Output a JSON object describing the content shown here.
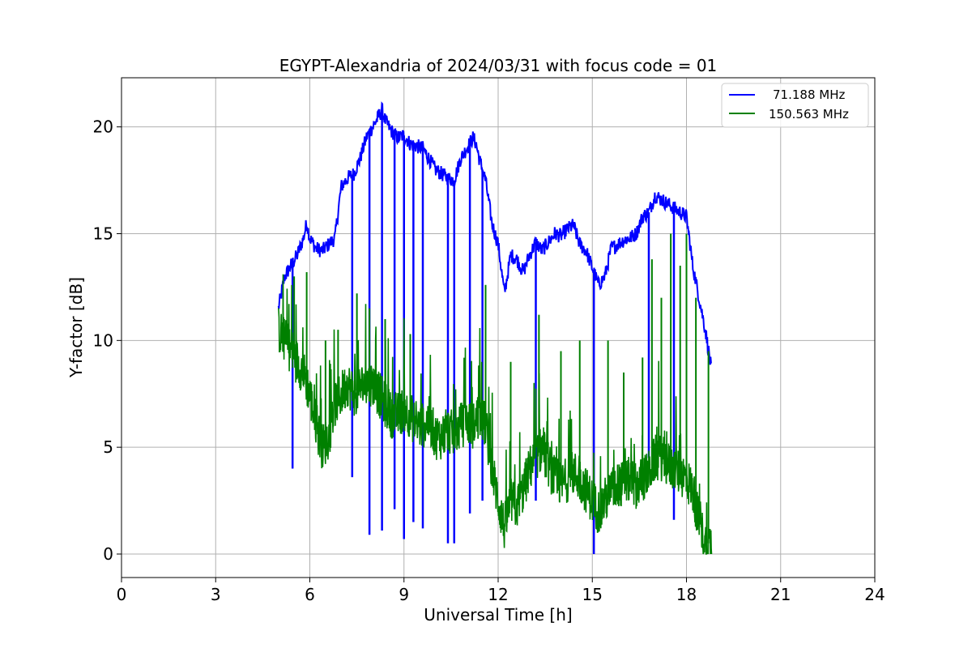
{
  "chart_data": {
    "type": "line",
    "title": "EGYPT-Alexandria of 2024/03/31 with focus code = 01",
    "xlabel": "Universal Time [h]",
    "ylabel": "Y-factor [dB]",
    "xlim": [
      0,
      24
    ],
    "ylim": [
      -1.1,
      22.3
    ],
    "xticks": [
      0,
      3,
      6,
      9,
      12,
      15,
      18,
      21,
      24
    ],
    "yticks": [
      0,
      5,
      10,
      15,
      20
    ],
    "grid": true,
    "legend_position": "top-right",
    "series": [
      {
        "name": "71.188 MHz",
        "color": "#0000ff",
        "x": [
          5.0,
          5.2,
          5.4,
          5.6,
          5.8,
          5.9,
          6.0,
          6.2,
          6.4,
          6.6,
          6.8,
          6.9,
          7.0,
          7.2,
          7.4,
          7.6,
          7.8,
          8.0,
          8.2,
          8.3,
          8.4,
          8.6,
          8.8,
          9.0,
          9.2,
          9.4,
          9.6,
          9.8,
          10.0,
          10.2,
          10.4,
          10.6,
          10.8,
          11.0,
          11.2,
          11.3,
          11.4,
          11.6,
          11.8,
          12.0,
          12.2,
          12.4,
          12.6,
          12.8,
          13.0,
          13.2,
          13.4,
          13.6,
          13.8,
          14.0,
          14.2,
          14.4,
          14.6,
          14.8,
          15.0,
          15.2,
          15.4,
          15.6,
          15.8,
          16.0,
          16.2,
          16.4,
          16.6,
          16.8,
          17.0,
          17.2,
          17.4,
          17.6,
          17.8,
          18.0,
          18.2,
          18.4,
          18.6,
          18.8
        ],
        "y": [
          11.5,
          13.0,
          13.5,
          14.0,
          14.8,
          15.5,
          14.8,
          14.3,
          14.2,
          14.5,
          14.8,
          16.0,
          17.2,
          17.6,
          17.8,
          18.5,
          19.5,
          20.0,
          20.5,
          20.8,
          20.3,
          19.8,
          19.5,
          19.6,
          19.2,
          19.1,
          19.0,
          18.5,
          18.0,
          17.8,
          17.6,
          17.5,
          18.5,
          19.0,
          19.5,
          19.2,
          18.5,
          17.5,
          15.5,
          14.5,
          12.2,
          14.0,
          13.8,
          13.2,
          14.0,
          14.6,
          14.2,
          14.6,
          15.0,
          14.9,
          15.2,
          15.4,
          14.5,
          14.2,
          13.4,
          12.6,
          13.0,
          14.3,
          14.5,
          14.7,
          14.8,
          15.0,
          15.8,
          16.0,
          16.8,
          16.6,
          16.4,
          16.2,
          16.0,
          15.8,
          13.5,
          12.0,
          10.5,
          8.6
        ],
        "dips": [
          [
            5.45,
            4.0
          ],
          [
            7.35,
            3.6
          ],
          [
            7.9,
            0.9
          ],
          [
            8.3,
            1.1
          ],
          [
            8.7,
            2.1
          ],
          [
            9.0,
            0.7
          ],
          [
            9.3,
            1.5
          ],
          [
            9.6,
            1.2
          ],
          [
            10.4,
            0.5
          ],
          [
            10.6,
            0.5
          ],
          [
            11.1,
            1.9
          ],
          [
            11.5,
            2.5
          ],
          [
            13.2,
            2.5
          ],
          [
            15.05,
            0.0
          ],
          [
            17.6,
            1.6
          ],
          [
            16.8,
            4.5
          ]
        ]
      },
      {
        "name": "150.563 MHz",
        "color": "#008000",
        "x": [
          5.0,
          5.2,
          5.4,
          5.6,
          5.8,
          6.0,
          6.2,
          6.4,
          6.6,
          6.8,
          7.0,
          7.2,
          7.4,
          7.6,
          7.8,
          8.0,
          8.2,
          8.4,
          8.6,
          8.8,
          9.0,
          9.2,
          9.4,
          9.6,
          9.8,
          10.0,
          10.2,
          10.4,
          10.6,
          10.8,
          11.0,
          11.2,
          11.4,
          11.6,
          11.8,
          12.0,
          12.2,
          12.4,
          12.6,
          12.8,
          13.0,
          13.2,
          13.4,
          13.6,
          13.8,
          14.0,
          14.2,
          14.4,
          14.6,
          14.8,
          15.0,
          15.2,
          15.4,
          15.6,
          15.8,
          16.0,
          16.2,
          16.4,
          16.6,
          16.8,
          17.0,
          17.2,
          17.4,
          17.6,
          17.8,
          18.0,
          18.2,
          18.4,
          18.6,
          18.8
        ],
        "y": [
          10.5,
          10.0,
          9.5,
          9.0,
          8.5,
          7.5,
          6.0,
          5.0,
          5.5,
          7.0,
          7.5,
          8.0,
          7.5,
          7.8,
          8.0,
          8.0,
          7.5,
          7.0,
          6.5,
          6.5,
          6.8,
          6.5,
          6.0,
          6.0,
          6.3,
          5.5,
          5.5,
          5.8,
          5.6,
          6.0,
          6.2,
          6.0,
          6.5,
          6.0,
          4.0,
          2.5,
          1.2,
          2.5,
          2.2,
          3.0,
          4.0,
          4.5,
          5.0,
          4.2,
          3.5,
          3.2,
          3.5,
          3.8,
          3.5,
          3.0,
          2.5,
          2.0,
          2.5,
          3.0,
          3.2,
          3.3,
          3.5,
          3.2,
          3.5,
          3.8,
          4.5,
          4.5,
          4.2,
          4.0,
          3.8,
          3.5,
          3.0,
          1.5,
          0.5,
          0.5
        ],
        "spikes": [
          [
            5.5,
            13.0
          ],
          [
            5.9,
            13.2
          ],
          [
            6.5,
            10.0
          ],
          [
            6.9,
            10.5
          ],
          [
            7.5,
            12.2
          ],
          [
            7.9,
            11.5
          ],
          [
            8.4,
            11.0
          ],
          [
            9.2,
            10.3
          ],
          [
            11.6,
            12.6
          ],
          [
            12.4,
            9.0
          ],
          [
            13.3,
            11.2
          ],
          [
            14.0,
            9.5
          ],
          [
            14.6,
            10.0
          ],
          [
            15.5,
            10.0
          ],
          [
            16.0,
            8.5
          ],
          [
            16.6,
            9.2
          ],
          [
            16.9,
            13.8
          ],
          [
            17.2,
            12.0
          ],
          [
            17.5,
            15.0
          ],
          [
            17.8,
            13.5
          ],
          [
            18.0,
            15.0
          ],
          [
            18.3,
            12.0
          ],
          [
            18.7,
            9.5
          ]
        ]
      }
    ]
  }
}
